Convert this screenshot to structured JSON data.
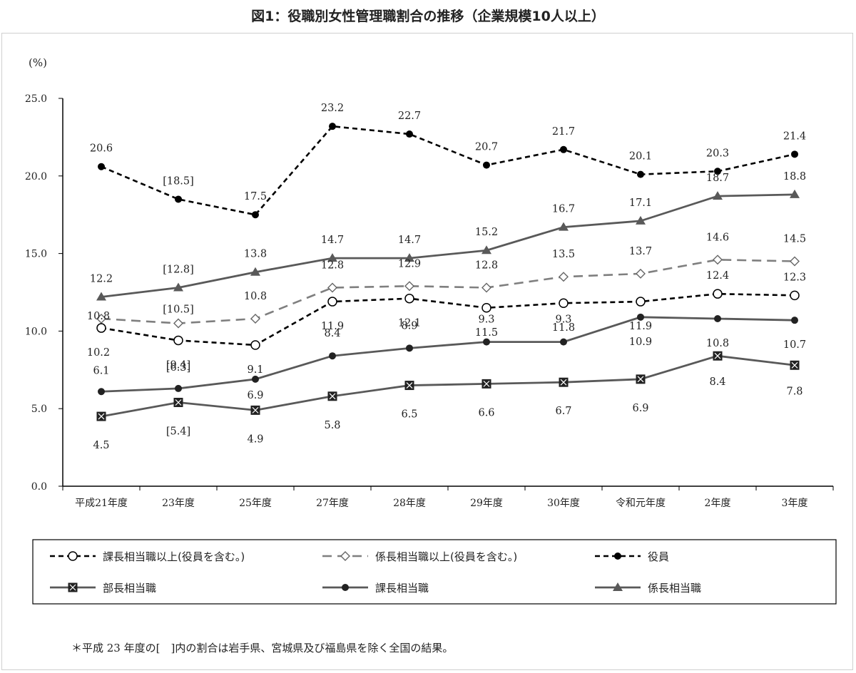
{
  "title": "図1：役職別女性管理職割合の推移（企業規模10人以上）",
  "footnote": "＊平成 23 年度の[　]内の割合は岩手県、宮城県及び福島県を除く全国の結果。",
  "chart_data": {
    "type": "line",
    "ylabel": "(%)",
    "ylim": [
      0,
      25
    ],
    "yticks": [
      "0.0",
      "5.0",
      "10.0",
      "15.0",
      "20.0",
      "25.0"
    ],
    "grid": false,
    "legend_placement": "bottom",
    "categories": [
      "平成21年度",
      "23年度",
      "25年度",
      "27年度",
      "28年度",
      "29年度",
      "30年度",
      "令和元年度",
      "2年度",
      "3年度"
    ],
    "series": [
      {
        "name": "役員",
        "style": "dashed-black",
        "marker": "filled-circle",
        "color": "#000000",
        "values": [
          20.6,
          18.5,
          17.5,
          23.2,
          22.7,
          20.7,
          21.7,
          20.1,
          20.3,
          21.4
        ],
        "labels": [
          "20.6",
          "[18.5]",
          "17.5",
          "23.2",
          "22.7",
          "20.7",
          "21.7",
          "20.1",
          "20.3",
          "21.4"
        ]
      },
      {
        "name": "係長相当職",
        "style": "solid-gray",
        "marker": "triangle",
        "color": "#595959",
        "values": [
          12.2,
          12.8,
          13.8,
          14.7,
          14.7,
          15.2,
          16.7,
          17.1,
          18.7,
          18.8
        ],
        "labels": [
          "12.2",
          "[12.8]",
          "13.8",
          "14.7",
          "14.7",
          "15.2",
          "16.7",
          "17.1",
          "18.7",
          "18.8"
        ]
      },
      {
        "name": "係長相当職以上(役員を含む。)",
        "style": "dashed-gray",
        "marker": "open-diamond",
        "color": "#7f7f7f",
        "values": [
          10.8,
          10.5,
          10.8,
          12.8,
          12.9,
          12.8,
          13.5,
          13.7,
          14.6,
          14.5
        ],
        "labels": [
          "10.8",
          "[10.5]",
          "10.8",
          "12.8",
          "12.9",
          "12.8",
          "13.5",
          "13.7",
          "14.6",
          "14.5"
        ]
      },
      {
        "name": "課長相当職以上(役員を含む。)",
        "style": "dashed-black",
        "marker": "open-circle",
        "color": "#000000",
        "values": [
          10.2,
          9.4,
          9.1,
          11.9,
          12.1,
          11.5,
          11.8,
          11.9,
          12.4,
          12.3
        ],
        "labels": [
          "10.2",
          "[9.4]",
          "9.1",
          "11.9",
          "12.1",
          "11.5",
          "11.8",
          "11.9",
          "12.4",
          "12.3"
        ]
      },
      {
        "name": "課長相当職",
        "style": "solid-gray",
        "marker": "filled-circle",
        "color": "#595959",
        "values": [
          6.1,
          6.3,
          6.9,
          8.4,
          8.9,
          9.3,
          9.3,
          10.9,
          10.8,
          10.7
        ],
        "labels": [
          "6.1",
          "[6.3]",
          "6.9",
          "8.4",
          "8.9",
          "9.3",
          "9.3",
          "10.9",
          "10.8",
          "10.7"
        ]
      },
      {
        "name": "部長相当職",
        "style": "solid-gray",
        "marker": "crossed-square",
        "color": "#595959",
        "values": [
          4.5,
          5.4,
          4.9,
          5.8,
          6.5,
          6.6,
          6.7,
          6.9,
          8.4,
          7.8
        ],
        "labels": [
          "4.5",
          "[5.4]",
          "4.9",
          "5.8",
          "6.5",
          "6.6",
          "6.7",
          "6.9",
          "8.4",
          "7.8"
        ]
      }
    ],
    "legend": [
      "課長相当職以上(役員を含む。)",
      "係長相当職以上(役員を含む。)",
      "役員",
      "部長相当職",
      "課長相当職",
      "係長相当職"
    ]
  }
}
